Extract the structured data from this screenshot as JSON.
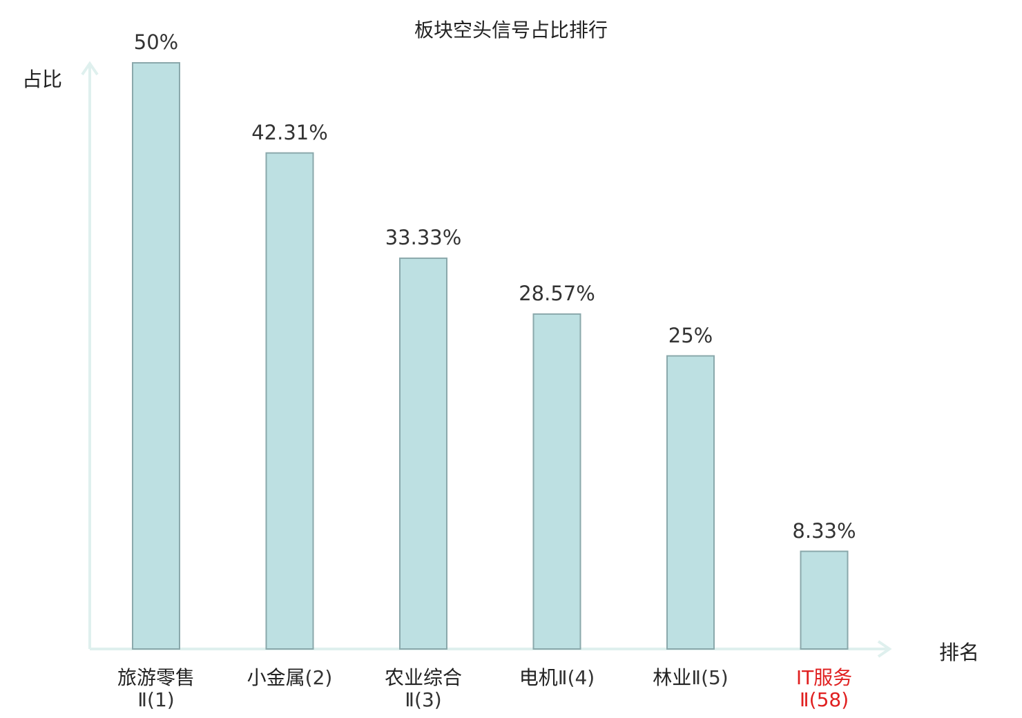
{
  "chart_data": {
    "type": "bar",
    "title": "板块空头信号占比排行",
    "ylabel": "占比",
    "xlabel": "排名",
    "categories": [
      {
        "name": "旅游零售",
        "suffix": "Ⅱ(1)",
        "highlight": false
      },
      {
        "name": "小金属",
        "suffix": "(2)",
        "highlight": false
      },
      {
        "name": "农业综合",
        "suffix": "Ⅱ(3)",
        "highlight": false
      },
      {
        "name": "电机",
        "suffix": "Ⅱ(4)",
        "highlight": false
      },
      {
        "name": "林业",
        "suffix": "Ⅱ(5)",
        "highlight": false
      },
      {
        "name": "IT服务",
        "suffix": "Ⅱ(58)",
        "highlight": true
      }
    ],
    "values": [
      50,
      42.31,
      33.33,
      28.57,
      25,
      8.33
    ],
    "value_labels": [
      "50%",
      "42.31%",
      "33.33%",
      "28.57%",
      "25%",
      "8.33%"
    ],
    "ylim": [
      0,
      50
    ],
    "grid": false,
    "legend": "none",
    "colors": {
      "bar_fill": "#bde0e2",
      "bar_stroke": "#8aa8ab",
      "axis": "#dff0ee",
      "highlight_text": "#e02020"
    }
  }
}
